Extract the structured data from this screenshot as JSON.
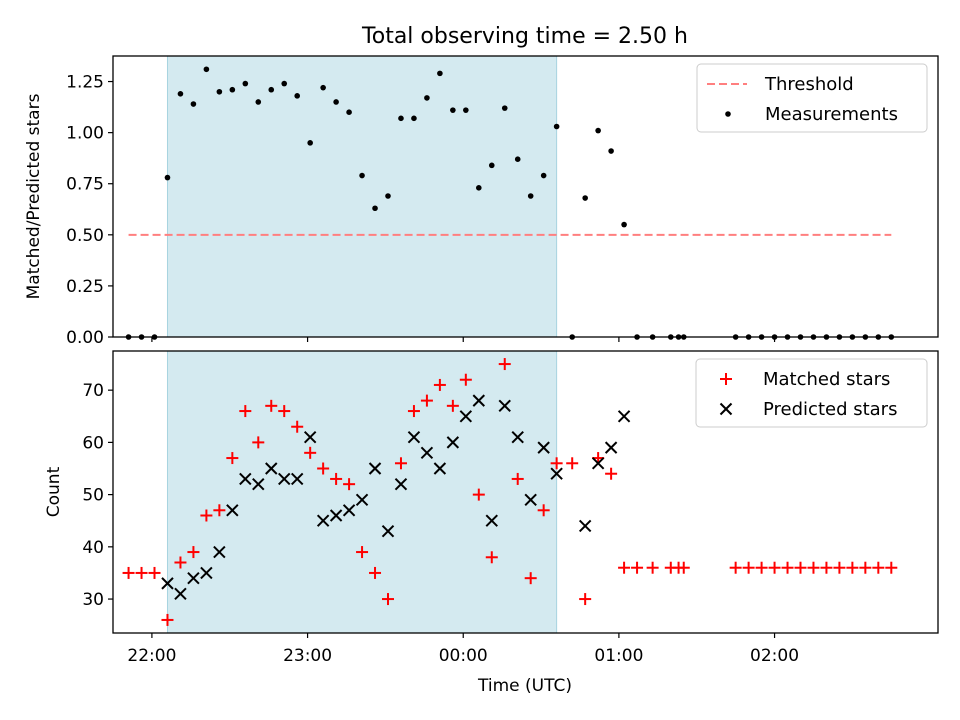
{
  "chart_data": [
    {
      "type": "scatter",
      "title": "Total observing time = 2.50 h",
      "ylabel": "Matched/Predicted stars",
      "ylim": [
        0,
        1.375
      ],
      "yticks": [
        0,
        0.25,
        0.5,
        0.75,
        1.0,
        1.25
      ],
      "ytick_labels": [
        "0.00",
        "0.25",
        "0.50",
        "0.75",
        "1.00",
        "1.25"
      ],
      "x_range": [
        "21:45",
        "03:03"
      ],
      "legend_position": "top-right",
      "shaded_interval": [
        "22:06",
        "00:36"
      ],
      "threshold": {
        "name": "Threshold",
        "y": 0.5,
        "x_start": "21:51",
        "x_end": "02:45",
        "color": "#ff7f7f"
      },
      "series": [
        {
          "name": "Measurements",
          "color": "#000000",
          "points": [
            [
              "21:51",
              0.0
            ],
            [
              "21:56",
              0.0
            ],
            [
              "22:01",
              0.0
            ],
            [
              "22:06",
              0.78
            ],
            [
              "22:11",
              1.19
            ],
            [
              "22:16",
              1.14
            ],
            [
              "22:21",
              1.31
            ],
            [
              "22:26",
              1.2
            ],
            [
              "22:31",
              1.21
            ],
            [
              "22:36",
              1.24
            ],
            [
              "22:41",
              1.15
            ],
            [
              "22:46",
              1.21
            ],
            [
              "22:51",
              1.24
            ],
            [
              "22:56",
              1.18
            ],
            [
              "23:01",
              0.95
            ],
            [
              "23:06",
              1.22
            ],
            [
              "23:11",
              1.15
            ],
            [
              "23:16",
              1.1
            ],
            [
              "23:21",
              0.79
            ],
            [
              "23:26",
              0.63
            ],
            [
              "23:31",
              0.69
            ],
            [
              "23:36",
              1.07
            ],
            [
              "23:41",
              1.07
            ],
            [
              "23:46",
              1.17
            ],
            [
              "23:51",
              1.29
            ],
            [
              "23:56",
              1.11
            ],
            [
              "00:01",
              1.11
            ],
            [
              "00:06",
              0.73
            ],
            [
              "00:11",
              0.84
            ],
            [
              "00:16",
              1.12
            ],
            [
              "00:21",
              0.87
            ],
            [
              "00:26",
              0.69
            ],
            [
              "00:31",
              0.79
            ],
            [
              "00:36",
              1.03
            ],
            [
              "00:42",
              0.0
            ],
            [
              "00:47",
              0.68
            ],
            [
              "00:52",
              1.01
            ],
            [
              "00:57",
              0.91
            ],
            [
              "01:02",
              0.55
            ],
            [
              "01:07",
              0.0
            ],
            [
              "01:13",
              0.0
            ],
            [
              "01:20",
              0.0
            ],
            [
              "01:23",
              0.0
            ],
            [
              "01:25",
              0.0
            ],
            [
              "01:45",
              0.0
            ],
            [
              "01:50",
              0.0
            ],
            [
              "01:55",
              0.0
            ],
            [
              "02:00",
              0.0
            ],
            [
              "02:05",
              0.0
            ],
            [
              "02:10",
              0.0
            ],
            [
              "02:15",
              0.0
            ],
            [
              "02:20",
              0.0
            ],
            [
              "02:25",
              0.0
            ],
            [
              "02:30",
              0.0
            ],
            [
              "02:35",
              0.0
            ],
            [
              "02:40",
              0.0
            ],
            [
              "02:45",
              0.0
            ]
          ]
        }
      ]
    },
    {
      "type": "scatter",
      "xlabel": "Time (UTC)",
      "ylabel": "Count",
      "ylim": [
        23.5,
        77.5
      ],
      "yticks": [
        30,
        40,
        50,
        60,
        70
      ],
      "ytick_labels": [
        "30",
        "40",
        "50",
        "60",
        "70"
      ],
      "xticks": [
        "22:00",
        "23:00",
        "00:00",
        "01:00",
        "02:00"
      ],
      "x_range": [
        "21:45",
        "03:03"
      ],
      "legend_position": "top-right",
      "shaded_interval": [
        "22:06",
        "00:36"
      ],
      "series": [
        {
          "name": "Matched stars",
          "marker": "+",
          "color": "#ff0000",
          "points": [
            [
              "21:51",
              35
            ],
            [
              "21:56",
              35
            ],
            [
              "22:01",
              35
            ],
            [
              "22:06",
              26
            ],
            [
              "22:11",
              37
            ],
            [
              "22:16",
              39
            ],
            [
              "22:21",
              46
            ],
            [
              "22:26",
              47
            ],
            [
              "22:31",
              57
            ],
            [
              "22:36",
              66
            ],
            [
              "22:41",
              60
            ],
            [
              "22:46",
              67
            ],
            [
              "22:51",
              66
            ],
            [
              "22:56",
              63
            ],
            [
              "23:01",
              58
            ],
            [
              "23:06",
              55
            ],
            [
              "23:11",
              53
            ],
            [
              "23:16",
              52
            ],
            [
              "23:21",
              39
            ],
            [
              "23:26",
              35
            ],
            [
              "23:31",
              30
            ],
            [
              "23:36",
              56
            ],
            [
              "23:41",
              66
            ],
            [
              "23:46",
              68
            ],
            [
              "23:51",
              71
            ],
            [
              "23:56",
              67
            ],
            [
              "00:01",
              72
            ],
            [
              "00:06",
              50
            ],
            [
              "00:11",
              38
            ],
            [
              "00:16",
              75
            ],
            [
              "00:21",
              53
            ],
            [
              "00:26",
              34
            ],
            [
              "00:31",
              47
            ],
            [
              "00:36",
              56
            ],
            [
              "00:42",
              56
            ],
            [
              "00:47",
              30
            ],
            [
              "00:52",
              57
            ],
            [
              "00:57",
              54
            ],
            [
              "01:02",
              36
            ],
            [
              "01:07",
              36
            ],
            [
              "01:13",
              36
            ],
            [
              "01:20",
              36
            ],
            [
              "01:23",
              36
            ],
            [
              "01:25",
              36
            ],
            [
              "01:45",
              36
            ],
            [
              "01:50",
              36
            ],
            [
              "01:55",
              36
            ],
            [
              "02:00",
              36
            ],
            [
              "02:05",
              36
            ],
            [
              "02:10",
              36
            ],
            [
              "02:15",
              36
            ],
            [
              "02:20",
              36
            ],
            [
              "02:25",
              36
            ],
            [
              "02:30",
              36
            ],
            [
              "02:35",
              36
            ],
            [
              "02:40",
              36
            ],
            [
              "02:45",
              36
            ]
          ]
        },
        {
          "name": "Predicted stars",
          "marker": "x",
          "color": "#000000",
          "points": [
            [
              "22:06",
              33
            ],
            [
              "22:11",
              31
            ],
            [
              "22:16",
              34
            ],
            [
              "22:21",
              35
            ],
            [
              "22:26",
              39
            ],
            [
              "22:31",
              47
            ],
            [
              "22:36",
              53
            ],
            [
              "22:41",
              52
            ],
            [
              "22:46",
              55
            ],
            [
              "22:51",
              53
            ],
            [
              "22:56",
              53
            ],
            [
              "23:01",
              61
            ],
            [
              "23:06",
              45
            ],
            [
              "23:11",
              46
            ],
            [
              "23:16",
              47
            ],
            [
              "23:21",
              49
            ],
            [
              "23:26",
              55
            ],
            [
              "23:31",
              43
            ],
            [
              "23:36",
              52
            ],
            [
              "23:41",
              61
            ],
            [
              "23:46",
              58
            ],
            [
              "23:51",
              55
            ],
            [
              "23:56",
              60
            ],
            [
              "00:01",
              65
            ],
            [
              "00:06",
              68
            ],
            [
              "00:11",
              45
            ],
            [
              "00:16",
              67
            ],
            [
              "00:21",
              61
            ],
            [
              "00:26",
              49
            ],
            [
              "00:31",
              59
            ],
            [
              "00:36",
              54
            ],
            [
              "00:47",
              44
            ],
            [
              "00:52",
              56
            ],
            [
              "00:57",
              59
            ],
            [
              "01:02",
              65
            ]
          ]
        }
      ]
    }
  ],
  "colors": {
    "shade": "#d4eaf0",
    "shade_edge": "#a7d3e0"
  }
}
